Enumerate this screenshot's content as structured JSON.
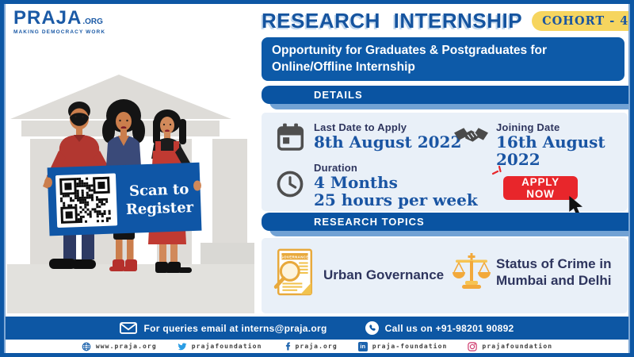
{
  "poster": {
    "logo": {
      "brand": "PRAJA",
      "suffix": ".ORG",
      "tagline": "MAKING DEMOCRACY WORK"
    },
    "header": {
      "title": "RESEARCH INTERNSHIP",
      "badge": "COHORT - 4",
      "subtitle": "Opportunity for Graduates & Postgraduates for Online/Offline Internship"
    },
    "details": {
      "heading": "DETAILS",
      "items": [
        {
          "icon": "calendar-icon",
          "label": "Last Date to Apply",
          "value": "8th August 2022"
        },
        {
          "icon": "handshake-icon",
          "label": "Joining Date",
          "value": "16th August 2022"
        },
        {
          "icon": "clock-icon",
          "label": "Duration",
          "value_line1": "4 Months",
          "value_line2": "25 hours per week"
        }
      ],
      "apply_label": "APPLY NOW"
    },
    "topics": {
      "heading": "RESEARCH TOPICS",
      "items": [
        {
          "icon": "governance-report-icon",
          "icon_caption": "GOVERNANCE",
          "label": "Urban Governance"
        },
        {
          "icon": "justice-scales-icon",
          "line1": "Status of Crime in",
          "line2": "Mumbai and Delhi"
        }
      ]
    },
    "scan_banner": {
      "line1": "Scan to",
      "line2": "Register"
    },
    "contact": {
      "email": "For queries email at interns@praja.org",
      "phone": "Call us on +91-98201 90892"
    },
    "social": [
      {
        "icon": "globe-icon",
        "label": "www.praja.org"
      },
      {
        "icon": "twitter-icon",
        "label": "prajafoundation"
      },
      {
        "icon": "facebook-icon",
        "label": "praja.org"
      },
      {
        "icon": "linkedin-icon",
        "label": "praja-foundation"
      },
      {
        "icon": "instagram-icon",
        "label": "prajafoundation"
      }
    ],
    "colors": {
      "primary_blue": "#0d57a4",
      "accent_light_blue": "#72a2d4",
      "panel_blue": "#e9f0f8",
      "badge_yellow": "#f6d55f",
      "apply_red": "#e8262b",
      "navy_text": "#2e355e",
      "value_blue": "#1a55a3",
      "topic_yellow": "#e8a93c"
    }
  }
}
